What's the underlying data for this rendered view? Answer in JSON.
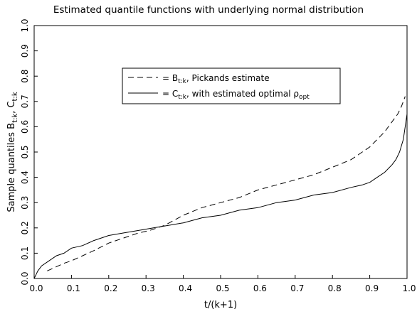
{
  "chart_data": {
    "type": "line",
    "title": "Estimated quantile functions with underlying normal distribution",
    "xlabel": "t/(k+1)",
    "ylabel": {
      "main": "Sample quantiles B",
      "sub1": "t:k",
      "sep": ", C",
      "sub2": "t:k"
    },
    "xlim": [
      0.0,
      1.0
    ],
    "ylim": [
      0.0,
      1.0
    ],
    "x_ticks": [
      0.0,
      0.1,
      0.2,
      0.3,
      0.4,
      0.5,
      0.6,
      0.7,
      0.8,
      0.9,
      1.0
    ],
    "x_tick_labels": [
      "0.0",
      "0.1",
      "0.2",
      "0.3",
      "0.4",
      "0.5",
      "0.6",
      "0.7",
      "0.8",
      "0.9",
      "1.0"
    ],
    "y_ticks": [
      0.0,
      0.1,
      0.2,
      0.3,
      0.4,
      0.5,
      0.6,
      0.7,
      0.8,
      0.9,
      1.0
    ],
    "y_tick_labels": [
      "0.0",
      "0.1",
      "0.2",
      "0.3",
      "0.4",
      "0.5",
      "0.6",
      "0.7",
      "0.8",
      "0.9",
      "1.0"
    ],
    "grid": false,
    "legend_position": "upper-center",
    "series": [
      {
        "legend": {
          "pre": "= B",
          "sub": "t:k",
          "post": ", Pickands estimate"
        },
        "line_style": "dashed",
        "color": "#000000",
        "x": [
          0.035,
          0.05,
          0.08,
          0.1,
          0.13,
          0.16,
          0.2,
          0.24,
          0.28,
          0.31,
          0.35,
          0.4,
          0.45,
          0.5,
          0.55,
          0.6,
          0.65,
          0.7,
          0.75,
          0.8,
          0.85,
          0.88,
          0.9,
          0.92,
          0.94,
          0.96,
          0.975,
          0.985,
          0.995
        ],
        "y": [
          0.03,
          0.04,
          0.06,
          0.07,
          0.09,
          0.11,
          0.14,
          0.16,
          0.18,
          0.19,
          0.21,
          0.25,
          0.28,
          0.3,
          0.32,
          0.35,
          0.37,
          0.39,
          0.41,
          0.44,
          0.47,
          0.5,
          0.52,
          0.55,
          0.58,
          0.62,
          0.65,
          0.68,
          0.72
        ]
      },
      {
        "legend": {
          "pre": "= C",
          "sub": "t:k",
          "mid": ", with estimated optimal ρ",
          "sub2": "opt"
        },
        "line_style": "solid",
        "color": "#000000",
        "x": [
          0.0,
          0.01,
          0.02,
          0.04,
          0.06,
          0.08,
          0.1,
          0.13,
          0.16,
          0.2,
          0.24,
          0.28,
          0.32,
          0.36,
          0.4,
          0.45,
          0.5,
          0.55,
          0.6,
          0.65,
          0.7,
          0.75,
          0.8,
          0.85,
          0.88,
          0.9,
          0.92,
          0.94,
          0.96,
          0.97,
          0.98,
          0.99,
          1.0
        ],
        "y": [
          0.0,
          0.03,
          0.05,
          0.07,
          0.09,
          0.1,
          0.12,
          0.13,
          0.15,
          0.17,
          0.18,
          0.19,
          0.2,
          0.21,
          0.22,
          0.24,
          0.25,
          0.27,
          0.28,
          0.3,
          0.31,
          0.33,
          0.34,
          0.36,
          0.37,
          0.38,
          0.4,
          0.42,
          0.45,
          0.47,
          0.5,
          0.55,
          0.65
        ]
      }
    ]
  }
}
